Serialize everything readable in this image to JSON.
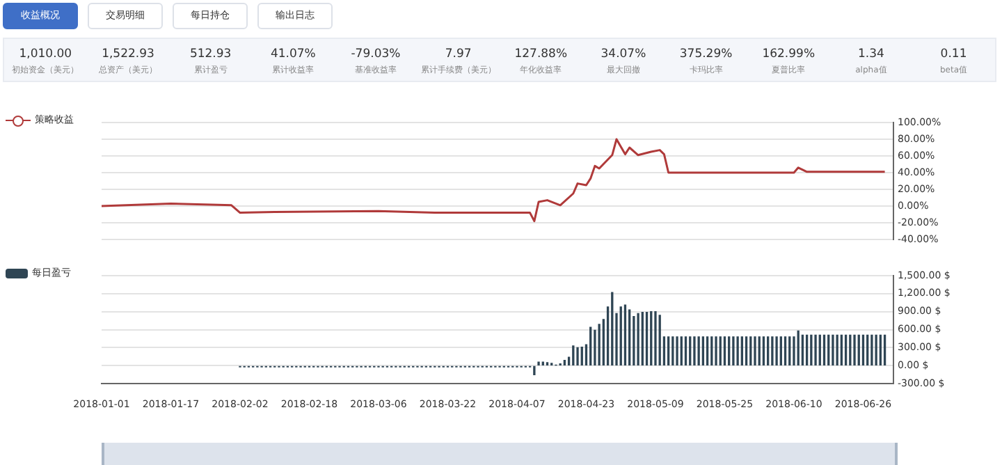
{
  "chart_data": [
    {
      "type": "other",
      "annotations": [
        "收益概况",
        "交易明细",
        "每日持仓",
        "输出日志"
      ]
    },
    {
      "type": "other",
      "categories": [
        "初始资金（美元）",
        "总资产（美元）",
        "累计盈亏",
        "累计收益率",
        "基准收益率",
        "累计手续费（美元）",
        "年化收益率",
        "最大回撤",
        "卡玛比率",
        "夏普比率",
        "alpha值",
        "beta值"
      ],
      "value_labels": [
        "1,010.00",
        "1,522.93",
        "512.93",
        "41.07%",
        "-79.03%",
        "7.97",
        "127.88%",
        "34.07%",
        "375.29%",
        "162.99%",
        "1.34",
        "0.11"
      ]
    },
    {
      "type": "line",
      "legend": "left",
      "grid": "y",
      "marker": "none",
      "line_style": "solid",
      "tick_labels": "y",
      "xlim": [
        "2018-01-01",
        "2018-07-03"
      ],
      "ylim": [
        -40,
        100
      ],
      "yticks": [
        {
          "value": -40,
          "label": "-40.00%"
        },
        {
          "value": -20,
          "label": "-20.00%"
        },
        {
          "value": 0,
          "label": "0.00%"
        },
        {
          "value": 20,
          "label": "20.00%"
        },
        {
          "value": 40,
          "label": "40.00%"
        },
        {
          "value": 60,
          "label": "60.00%"
        },
        {
          "value": 80,
          "label": "80.00%"
        },
        {
          "value": 100,
          "label": "100.00%"
        }
      ],
      "series": [
        {
          "name": "策略收益",
          "color": "#b03a3a",
          "x": [
            "2018-01-01",
            "2018-01-17",
            "2018-01-31",
            "2018-02-02",
            "2018-02-10",
            "2018-03-06",
            "2018-03-19",
            "2018-04-10",
            "2018-04-11",
            "2018-04-12",
            "2018-04-14",
            "2018-04-17",
            "2018-04-20",
            "2018-04-21",
            "2018-04-23",
            "2018-04-24",
            "2018-04-25",
            "2018-04-26",
            "2018-04-29",
            "2018-04-30",
            "2018-05-02",
            "2018-05-03",
            "2018-05-05",
            "2018-05-08",
            "2018-05-10",
            "2018-05-11",
            "2018-05-12",
            "2018-06-10",
            "2018-06-11",
            "2018-06-13",
            "2018-07-01"
          ],
          "values": [
            0,
            3,
            1,
            -8,
            -7,
            -6,
            -8,
            -8,
            -18,
            5,
            7,
            1,
            15,
            27,
            25,
            33,
            48,
            45,
            61,
            80,
            62,
            70,
            61,
            65,
            67,
            62,
            40,
            40,
            46,
            41,
            41
          ]
        }
      ]
    },
    {
      "type": "bar",
      "legend": "left",
      "grid": "y",
      "xlim": [
        "2018-01-01",
        "2018-07-03"
      ],
      "xticks": [
        "2018-01-01",
        "2018-01-17",
        "2018-02-02",
        "2018-02-18",
        "2018-03-06",
        "2018-03-22",
        "2018-04-07",
        "2018-04-23",
        "2018-05-09",
        "2018-05-25",
        "2018-06-10",
        "2018-06-26"
      ],
      "ylim": [
        -300,
        1500
      ],
      "yticks": [
        {
          "value": -300,
          "label": "-300.00 $"
        },
        {
          "value": 0,
          "label": "0.00 $"
        },
        {
          "value": 300,
          "label": "300.00 $"
        },
        {
          "value": 600,
          "label": "600.00 $"
        },
        {
          "value": 900,
          "label": "900.00 $"
        },
        {
          "value": 1200,
          "label": "1,200.00 $"
        },
        {
          "value": 1500,
          "label": "1,500.00 $"
        }
      ],
      "series": [
        {
          "name": "每日盈亏",
          "color": "#2f4554",
          "x": [
            "2018-02-02",
            "2018-02-03",
            "2018-02-04",
            "2018-02-05",
            "2018-02-06",
            "2018-02-07",
            "2018-02-08",
            "2018-02-09",
            "2018-02-10",
            "2018-02-11",
            "2018-02-12",
            "2018-02-13",
            "2018-02-14",
            "2018-02-15",
            "2018-02-16",
            "2018-02-17",
            "2018-02-18",
            "2018-02-19",
            "2018-02-20",
            "2018-02-21",
            "2018-02-22",
            "2018-02-23",
            "2018-02-24",
            "2018-02-25",
            "2018-02-26",
            "2018-02-27",
            "2018-02-28",
            "2018-03-01",
            "2018-03-02",
            "2018-03-03",
            "2018-03-04",
            "2018-03-05",
            "2018-03-06",
            "2018-03-07",
            "2018-03-08",
            "2018-03-09",
            "2018-03-10",
            "2018-03-11",
            "2018-03-12",
            "2018-03-13",
            "2018-03-14",
            "2018-03-15",
            "2018-03-16",
            "2018-03-17",
            "2018-03-18",
            "2018-03-19",
            "2018-03-20",
            "2018-03-21",
            "2018-03-22",
            "2018-03-23",
            "2018-03-24",
            "2018-03-25",
            "2018-03-26",
            "2018-03-27",
            "2018-03-28",
            "2018-03-29",
            "2018-03-30",
            "2018-03-31",
            "2018-04-01",
            "2018-04-02",
            "2018-04-03",
            "2018-04-04",
            "2018-04-05",
            "2018-04-06",
            "2018-04-07",
            "2018-04-08",
            "2018-04-09",
            "2018-04-10",
            "2018-04-11",
            "2018-04-12",
            "2018-04-13",
            "2018-04-14",
            "2018-04-15",
            "2018-04-16",
            "2018-04-17",
            "2018-04-18",
            "2018-04-19",
            "2018-04-20",
            "2018-04-21",
            "2018-04-22",
            "2018-04-23",
            "2018-04-24",
            "2018-04-25",
            "2018-04-26",
            "2018-04-27",
            "2018-04-28",
            "2018-04-29",
            "2018-04-30",
            "2018-05-01",
            "2018-05-02",
            "2018-05-03",
            "2018-05-04",
            "2018-05-05",
            "2018-05-06",
            "2018-05-07",
            "2018-05-08",
            "2018-05-09",
            "2018-05-10",
            "2018-05-11",
            "2018-05-12",
            "2018-05-13",
            "2018-05-14",
            "2018-05-15",
            "2018-05-16",
            "2018-05-17",
            "2018-05-18",
            "2018-05-19",
            "2018-05-20",
            "2018-05-21",
            "2018-05-22",
            "2018-05-23",
            "2018-05-24",
            "2018-05-25",
            "2018-05-26",
            "2018-05-27",
            "2018-05-28",
            "2018-05-29",
            "2018-05-30",
            "2018-05-31",
            "2018-06-01",
            "2018-06-02",
            "2018-06-03",
            "2018-06-04",
            "2018-06-05",
            "2018-06-06",
            "2018-06-07",
            "2018-06-08",
            "2018-06-09",
            "2018-06-10",
            "2018-06-11",
            "2018-06-12",
            "2018-06-13",
            "2018-06-14",
            "2018-06-15",
            "2018-06-16",
            "2018-06-17",
            "2018-06-18",
            "2018-06-19",
            "2018-06-20",
            "2018-06-21",
            "2018-06-22",
            "2018-06-23",
            "2018-06-24",
            "2018-06-25",
            "2018-06-26",
            "2018-06-27",
            "2018-06-28",
            "2018-06-29",
            "2018-06-30",
            "2018-07-01"
          ],
          "values": [
            -20,
            -20,
            -20,
            -20,
            -20,
            -20,
            -20,
            -20,
            -20,
            -20,
            -20,
            -20,
            -20,
            -20,
            -20,
            -20,
            -20,
            -20,
            -20,
            -20,
            -20,
            -20,
            -20,
            -20,
            -20,
            -20,
            -20,
            -20,
            -20,
            -20,
            -20,
            -20,
            -20,
            -20,
            -20,
            -20,
            -20,
            -20,
            -20,
            -20,
            -20,
            -20,
            -20,
            -20,
            -20,
            -20,
            -20,
            -20,
            -20,
            -20,
            -20,
            -20,
            -20,
            -20,
            -20,
            -20,
            -20,
            -20,
            -20,
            -20,
            -20,
            -20,
            -20,
            -20,
            -20,
            -20,
            -20,
            -20,
            -150,
            60,
            60,
            50,
            40,
            10,
            30,
            90,
            140,
            330,
            300,
            310,
            350,
            640,
            590,
            690,
            770,
            980,
            1220,
            870,
            980,
            1010,
            930,
            820,
            870,
            890,
            890,
            900,
            900,
            840,
            480,
            480,
            480,
            480,
            480,
            480,
            480,
            480,
            480,
            480,
            480,
            480,
            480,
            480,
            480,
            480,
            480,
            480,
            480,
            480,
            480,
            480,
            480,
            480,
            480,
            480,
            480,
            480,
            480,
            480,
            480,
            580,
            510,
            510,
            510,
            510,
            510,
            510,
            510,
            510,
            510,
            510,
            510,
            510,
            510,
            510,
            510,
            510,
            510,
            510,
            510,
            510
          ]
        }
      ]
    }
  ]
}
